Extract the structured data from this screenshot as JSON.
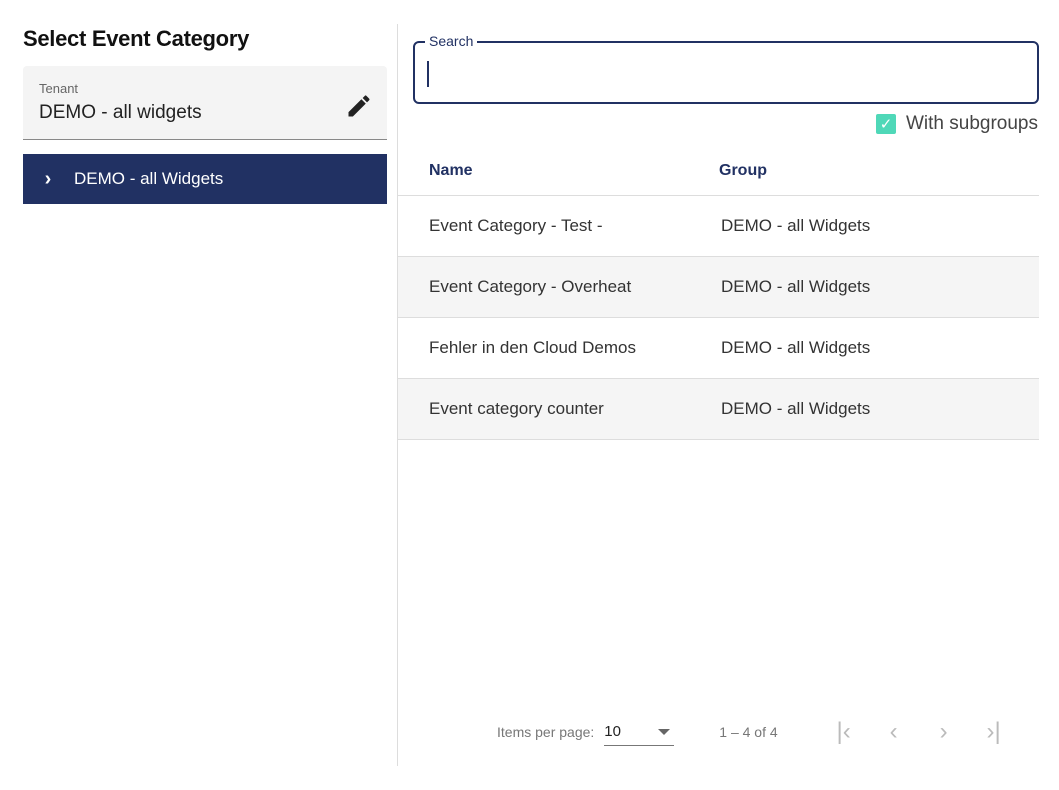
{
  "title": "Select Event Category",
  "tenant": {
    "label": "Tenant",
    "value": "DEMO - all widgets",
    "icon": "pencil-icon"
  },
  "tree": {
    "item": "DEMO - all Widgets",
    "icon": "chevron-right-icon"
  },
  "search": {
    "label": "Search",
    "value": ""
  },
  "subgroups": {
    "label": "With subgroups",
    "checked": true,
    "color": "#4fd8b8"
  },
  "table": {
    "headers": [
      "Name",
      "Group"
    ],
    "rows": [
      [
        "Event Category - Test -",
        "DEMO - all Widgets"
      ],
      [
        "Event Category - Overheat",
        "DEMO - all Widgets"
      ],
      [
        "Fehler in den Cloud Demos",
        "DEMO - all Widgets"
      ],
      [
        "Event category counter",
        "DEMO - all Widgets"
      ]
    ]
  },
  "paginator": {
    "items_label": "Items per page:",
    "page_size": "10",
    "range": "1 – 4 of 4"
  },
  "colors": {
    "primary": "#213163",
    "accent": "#4fd8b8"
  }
}
